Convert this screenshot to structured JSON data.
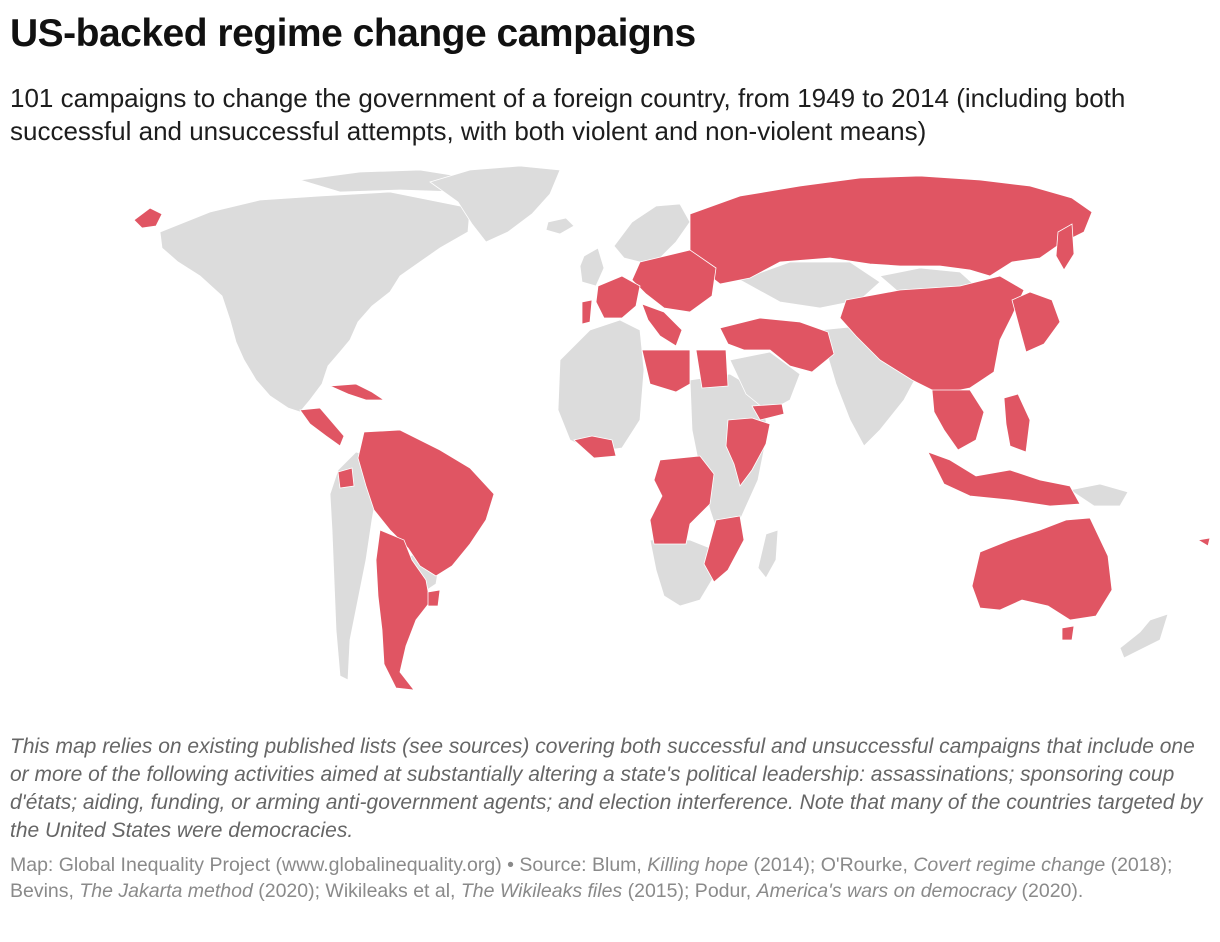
{
  "header": {
    "title": "US-backed regime change campaigns",
    "subtitle": "101 campaigns to change the government of a foreign country, from 1949 to 2014 (including both successful and unsuccessful attempts, with both violent and non-violent means)"
  },
  "map": {
    "colors": {
      "targeted": "#e05563",
      "other": "#dcdcdc",
      "border": "#ffffff"
    }
  },
  "note": "This map relies on existing published lists (see sources) covering both successful and unsuccessful campaigns that include one or more of the following activities aimed at substantially altering a state's political leadership: assassinations; sponsoring coup d'états; aiding, funding, or arming anti-government agents; and election interference. Note that many of the countries targeted by the United States were democracies.",
  "credits": {
    "lead": "Map: Global Inequality Project (www.globalinequality.org) • Source: Blum, ",
    "s1_title": "Killing hope",
    "s1_year": " (2014); O'Rourke, ",
    "s2_title": "Covert regime change",
    "s2_year": " (2018); Bevins, ",
    "s3_title": "The Jakarta method",
    "s3_year": " (2020); Wikileaks et al, ",
    "s4_title": "The Wikileaks files",
    "s4_year": " (2015); Podur, ",
    "s5_title": "America's wars on democracy",
    "s5_year": " (2020)."
  }
}
